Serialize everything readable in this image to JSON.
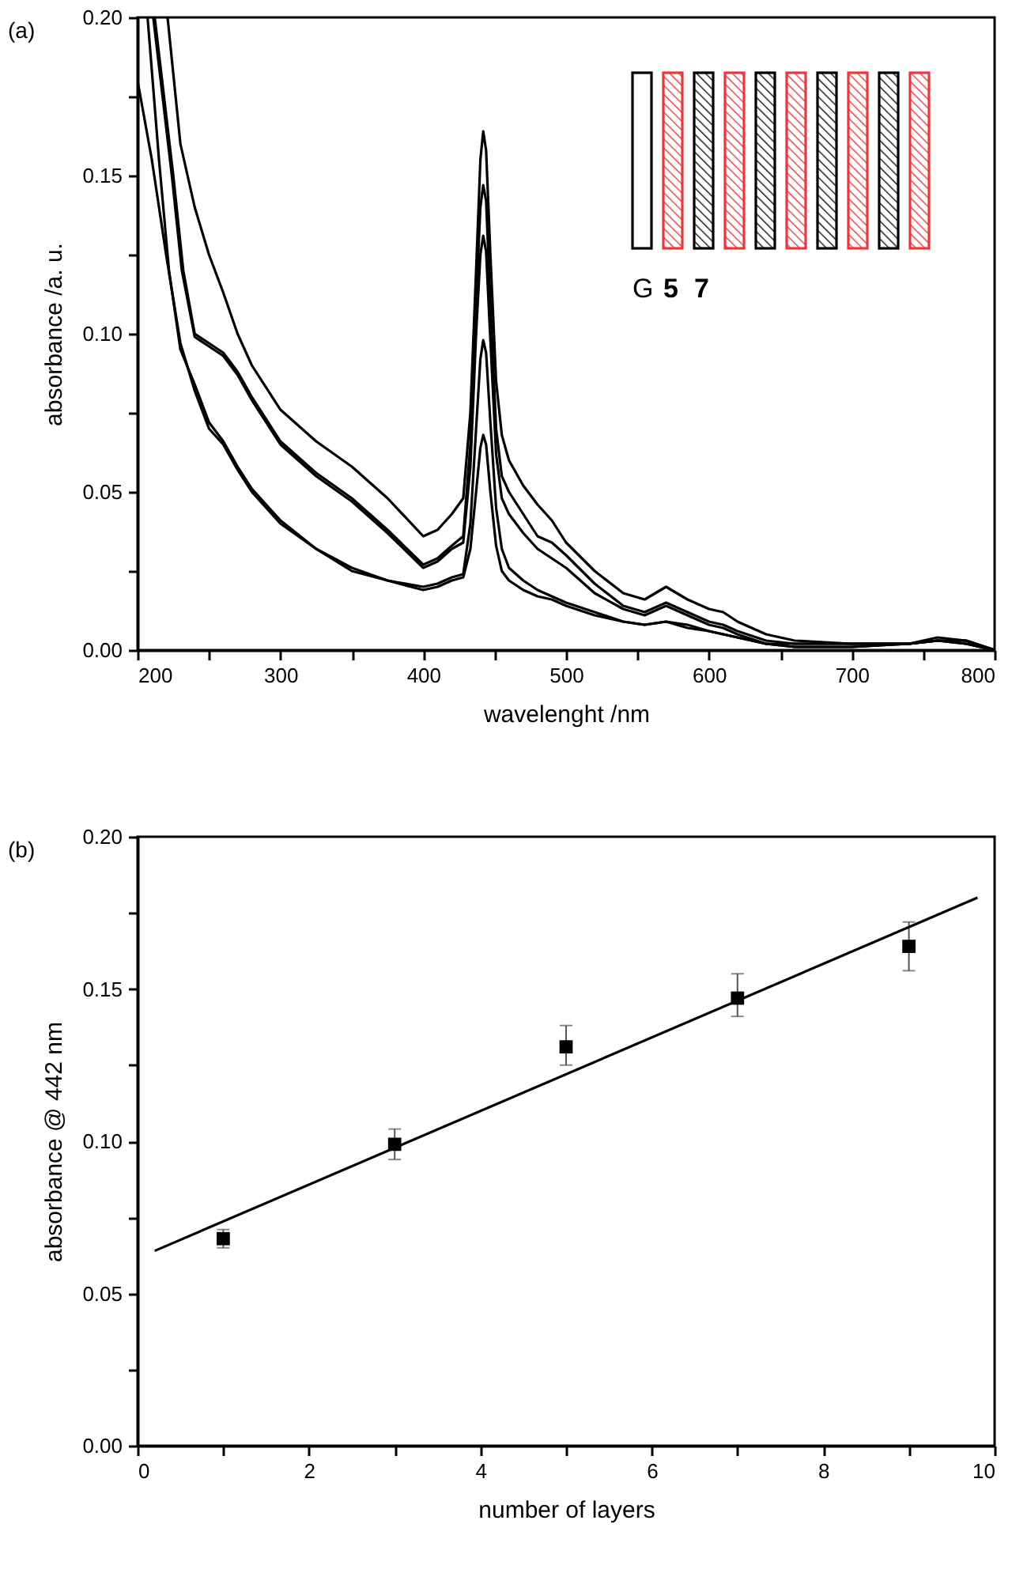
{
  "chart_data": [
    {
      "type": "line",
      "title": "(a)",
      "xlabel": "wavelenght /nm",
      "ylabel": "absorbance /a. u.",
      "xlim": [
        200,
        800
      ],
      "xticks": [
        200,
        {
          "value": 250,
          "label": null
        },
        300,
        {
          "value": 350,
          "label": null
        },
        400,
        {
          "value": 450,
          "label": null
        },
        500,
        {
          "value": 550,
          "label": null
        },
        600,
        {
          "value": 650,
          "label": null
        },
        700,
        {
          "value": 750,
          "label": null
        },
        800
      ],
      "ylim": [
        0,
        0.2
      ],
      "yticks": [
        {
          "value": 0,
          "label": "0.00"
        },
        {
          "value": 0.025,
          "label": null
        },
        {
          "value": 0.05,
          "label": "0.05"
        },
        {
          "value": 0.075,
          "label": null
        },
        {
          "value": 0.1,
          "label": "0.10"
        },
        {
          "value": 0.125,
          "label": null
        },
        {
          "value": 0.15,
          "label": "0.15"
        },
        {
          "value": 0.175,
          "label": null
        },
        {
          "value": 0.2,
          "label": "0.20"
        }
      ],
      "annotations": [
        "G",
        "5",
        "7"
      ],
      "series": [
        {
          "color": "#000000",
          "x": [
            221,
            230,
            240,
            250,
            260,
            270,
            280,
            300,
            325,
            350,
            375,
            400,
            410,
            420,
            428,
            433,
            437,
            440,
            442,
            444,
            447,
            451,
            455,
            460,
            470,
            480,
            490,
            500,
            520,
            540,
            555,
            570,
            585,
            600,
            610,
            620,
            640,
            660,
            700,
            740,
            760,
            780,
            800
          ],
          "values": [
            0.2,
            0.16,
            0.14,
            0.125,
            0.113,
            0.1,
            0.09,
            0.076,
            0.066,
            0.058,
            0.048,
            0.036,
            0.038,
            0.043,
            0.048,
            0.075,
            0.12,
            0.155,
            0.164,
            0.158,
            0.125,
            0.085,
            0.068,
            0.06,
            0.052,
            0.046,
            0.041,
            0.034,
            0.025,
            0.018,
            0.016,
            0.02,
            0.016,
            0.013,
            0.012,
            0.009,
            0.005,
            0.003,
            0.002,
            0.002,
            0.004,
            0.003,
            0.0
          ]
        },
        {
          "color": "#000000",
          "x": [
            212,
            225,
            232,
            240,
            250,
            260,
            270,
            280,
            300,
            325,
            350,
            375,
            400,
            410,
            420,
            428,
            433,
            437,
            440,
            442,
            444,
            447,
            451,
            455,
            460,
            470,
            480,
            490,
            500,
            520,
            540,
            555,
            570,
            585,
            600,
            610,
            620,
            640,
            660,
            700,
            740,
            760,
            780,
            800
          ],
          "values": [
            0.2,
            0.15,
            0.12,
            0.1,
            0.097,
            0.094,
            0.088,
            0.08,
            0.066,
            0.056,
            0.048,
            0.038,
            0.027,
            0.029,
            0.033,
            0.036,
            0.065,
            0.11,
            0.14,
            0.147,
            0.142,
            0.11,
            0.07,
            0.055,
            0.05,
            0.043,
            0.036,
            0.034,
            0.03,
            0.021,
            0.014,
            0.012,
            0.015,
            0.012,
            0.009,
            0.008,
            0.006,
            0.003,
            0.002,
            0.002,
            0.002,
            0.003,
            0.003,
            0.0
          ]
        },
        {
          "color": "#000000",
          "x": [
            211,
            224,
            231,
            240,
            250,
            260,
            270,
            280,
            300,
            325,
            350,
            375,
            400,
            410,
            420,
            428,
            433,
            437,
            440,
            442,
            444,
            447,
            451,
            455,
            460,
            470,
            480,
            490,
            500,
            520,
            540,
            555,
            570,
            585,
            600,
            610,
            620,
            640,
            660,
            700,
            740,
            760,
            780,
            800
          ],
          "values": [
            0.2,
            0.15,
            0.12,
            0.099,
            0.096,
            0.093,
            0.087,
            0.079,
            0.065,
            0.055,
            0.047,
            0.037,
            0.026,
            0.028,
            0.032,
            0.034,
            0.058,
            0.1,
            0.125,
            0.131,
            0.126,
            0.098,
            0.062,
            0.048,
            0.043,
            0.037,
            0.032,
            0.029,
            0.026,
            0.018,
            0.013,
            0.011,
            0.014,
            0.011,
            0.008,
            0.007,
            0.005,
            0.002,
            0.002,
            0.002,
            0.002,
            0.003,
            0.003,
            0.0
          ]
        },
        {
          "color": "#000000",
          "x": [
            207,
            215,
            222,
            230,
            240,
            250,
            260,
            270,
            280,
            300,
            325,
            350,
            375,
            400,
            410,
            420,
            428,
            433,
            437,
            440,
            442,
            444,
            447,
            451,
            455,
            460,
            470,
            480,
            490,
            500,
            520,
            540,
            555,
            570,
            585,
            600,
            610,
            620,
            640,
            660,
            700,
            740,
            760,
            780,
            800
          ],
          "values": [
            0.2,
            0.155,
            0.12,
            0.095,
            0.084,
            0.072,
            0.066,
            0.058,
            0.051,
            0.041,
            0.032,
            0.026,
            0.022,
            0.02,
            0.021,
            0.023,
            0.024,
            0.04,
            0.07,
            0.092,
            0.098,
            0.094,
            0.072,
            0.045,
            0.032,
            0.026,
            0.022,
            0.019,
            0.017,
            0.015,
            0.012,
            0.009,
            0.008,
            0.009,
            0.008,
            0.006,
            0.005,
            0.004,
            0.002,
            0.001,
            0.001,
            0.002,
            0.003,
            0.002,
            0.0
          ]
        },
        {
          "color": "#000000",
          "x": [
            200,
            210,
            220,
            230,
            240,
            250,
            260,
            270,
            280,
            300,
            325,
            350,
            375,
            400,
            410,
            420,
            428,
            433,
            437,
            440,
            442,
            444,
            447,
            451,
            455,
            460,
            470,
            480,
            490,
            500,
            520,
            540,
            555,
            570,
            585,
            600,
            610,
            620,
            640,
            660,
            700,
            740,
            760,
            780,
            800
          ],
          "values": [
            0.18,
            0.155,
            0.125,
            0.097,
            0.082,
            0.07,
            0.065,
            0.057,
            0.05,
            0.04,
            0.032,
            0.025,
            0.022,
            0.019,
            0.02,
            0.022,
            0.023,
            0.032,
            0.05,
            0.064,
            0.068,
            0.065,
            0.05,
            0.033,
            0.025,
            0.022,
            0.019,
            0.017,
            0.016,
            0.014,
            0.011,
            0.009,
            0.008,
            0.009,
            0.007,
            0.006,
            0.005,
            0.004,
            0.002,
            0.001,
            0.001,
            0.002,
            0.003,
            0.002,
            0.0
          ]
        }
      ]
    },
    {
      "type": "scatter",
      "title": "(b)",
      "xlabel": "number of layers",
      "ylabel": "absorbance @ 442 nm",
      "xlim": [
        0,
        10
      ],
      "xticks": [
        0,
        {
          "value": 1,
          "label": null
        },
        2,
        {
          "value": 3,
          "label": null
        },
        4,
        {
          "value": 5,
          "label": null
        },
        6,
        {
          "value": 7,
          "label": null
        },
        8,
        {
          "value": 9,
          "label": null
        },
        10
      ],
      "ylim": [
        0,
        0.2
      ],
      "yticks": [
        {
          "value": 0,
          "label": "0.00"
        },
        {
          "value": 0.025,
          "label": null
        },
        {
          "value": 0.05,
          "label": "0.05"
        },
        {
          "value": 0.075,
          "label": null
        },
        {
          "value": 0.1,
          "label": "0.10"
        },
        {
          "value": 0.125,
          "label": null
        },
        {
          "value": 0.15,
          "label": "0.15"
        },
        {
          "value": 0.175,
          "label": null
        },
        {
          "value": 0.2,
          "label": "0.20"
        }
      ],
      "series": [
        {
          "marker": "square",
          "color": "#000000",
          "x": [
            1,
            3,
            5,
            7,
            9
          ],
          "values": [
            0.068,
            0.099,
            0.131,
            0.147,
            0.164
          ],
          "errors": [
            0.003,
            0.005,
            [
              0.125,
              0.138
            ],
            [
              0.141,
              0.155
            ],
            [
              0.156,
              0.172
            ]
          ]
        },
        {
          "type": "line",
          "color": "#000000",
          "x": [
            0.2,
            9.8
          ],
          "values": [
            0.064,
            0.18
          ]
        }
      ]
    }
  ]
}
